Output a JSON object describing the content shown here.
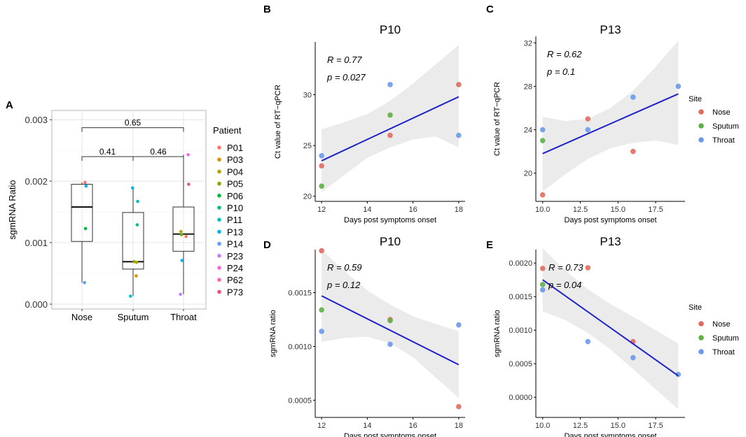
{
  "figure": {
    "site_legend_title": "Site",
    "patient_legend_title": "Patient",
    "colors": {
      "Nose": "#E06C5F",
      "Sputum": "#5DB146",
      "Throat": "#6A99EA",
      "fit_line": "#1E22C8",
      "band": "#EBEBEB",
      "grid": "#E4E4E4"
    }
  },
  "chart_data": [
    {
      "panel": "A",
      "type": "box",
      "title": "",
      "ylabel": "sgmRNA Ratio",
      "xlabel": "",
      "categories": [
        "Nose",
        "Sputum",
        "Throat"
      ],
      "ylim": [
        -8e-05,
        0.00315
      ],
      "yticks": [
        0,
        0.001,
        0.002,
        0.003
      ],
      "ytick_labels": [
        "0.000",
        "0.001",
        "0.002",
        "0.003"
      ],
      "boxes": [
        {
          "category": "Nose",
          "min": 0.00035,
          "q1": 0.00102,
          "median": 0.00158,
          "q3": 0.00195,
          "max": 0.00198
        },
        {
          "category": "Sputum",
          "min": 0.00013,
          "q1": 0.00057,
          "median": 0.00069,
          "q3": 0.00149,
          "max": 0.00189
        },
        {
          "category": "Throat",
          "min": 0.00016,
          "q1": 0.00086,
          "median": 0.00114,
          "q3": 0.00158,
          "max": 0.00243
        }
      ],
      "comparisons": [
        {
          "from": "Nose",
          "to": "Throat",
          "label": "0.65",
          "y": 0.00287
        },
        {
          "from": "Nose",
          "to": "Sputum",
          "label": "0.41",
          "y": 0.0024
        },
        {
          "from": "Sputum",
          "to": "Throat",
          "label": "0.46",
          "y": 0.0024
        }
      ],
      "legend": [
        {
          "name": "P01",
          "color": "#F8766D"
        },
        {
          "name": "P03",
          "color": "#DE8C00"
        },
        {
          "name": "P04",
          "color": "#B79F00"
        },
        {
          "name": "P05",
          "color": "#7CAE00"
        },
        {
          "name": "P06",
          "color": "#00BA38"
        },
        {
          "name": "P10",
          "color": "#00C08B"
        },
        {
          "name": "P11",
          "color": "#00BFC4"
        },
        {
          "name": "P13",
          "color": "#00B4F0"
        },
        {
          "name": "P14",
          "color": "#619CFF"
        },
        {
          "name": "P23",
          "color": "#C77CFF"
        },
        {
          "name": "P24",
          "color": "#F564E3"
        },
        {
          "name": "P62",
          "color": "#FF64B0"
        },
        {
          "name": "P73",
          "color": "#E8508A"
        }
      ],
      "points": [
        {
          "category": "Nose",
          "dx": 0.06,
          "y": 0.00198,
          "color": "#F8766D"
        },
        {
          "category": "Nose",
          "dx": 0.08,
          "y": 0.00192,
          "color": "#00B4F0"
        },
        {
          "category": "Nose",
          "dx": 0.07,
          "y": 0.00123,
          "color": "#00BA38"
        },
        {
          "category": "Nose",
          "dx": 0.05,
          "y": 0.00035,
          "color": "#619CFF"
        },
        {
          "category": "Sputum",
          "dx": -0.01,
          "y": 0.00189,
          "color": "#00B4F0"
        },
        {
          "category": "Sputum",
          "dx": 0.09,
          "y": 0.00167,
          "color": "#00BFC4"
        },
        {
          "category": "Sputum",
          "dx": 0.08,
          "y": 0.00129,
          "color": "#00C08B"
        },
        {
          "category": "Sputum",
          "dx": 0.02,
          "y": 0.00069,
          "color": "#7CAE00"
        },
        {
          "category": "Sputum",
          "dx": 0.07,
          "y": 0.00068,
          "color": "#B79F00"
        },
        {
          "category": "Sputum",
          "dx": 0.06,
          "y": 0.00046,
          "color": "#DE8C00"
        },
        {
          "category": "Sputum",
          "dx": -0.05,
          "y": 0.00013,
          "color": "#00BFC4"
        },
        {
          "category": "Throat",
          "dx": 0.09,
          "y": 0.00243,
          "color": "#F564E3"
        },
        {
          "category": "Throat",
          "dx": 0.1,
          "y": 0.00195,
          "color": "#E8508A"
        },
        {
          "category": "Throat",
          "dx": -0.05,
          "y": 0.00118,
          "color": "#B79F00"
        },
        {
          "category": "Throat",
          "dx": -0.04,
          "y": 0.00113,
          "color": "#7CAE00"
        },
        {
          "category": "Throat",
          "dx": 0.05,
          "y": 0.0011,
          "color": "#F8766D"
        },
        {
          "category": "Throat",
          "dx": -0.03,
          "y": 0.00071,
          "color": "#00B4F0"
        },
        {
          "category": "Throat",
          "dx": -0.06,
          "y": 0.00016,
          "color": "#C77CFF"
        }
      ]
    },
    {
      "panel": "B",
      "type": "scatter",
      "title": "P10",
      "xlabel": "Days post symptoms onset",
      "ylabel": "Ct value of RT−qPCR",
      "xlim": [
        11.72,
        18.28
      ],
      "ylim": [
        19.5,
        35.2
      ],
      "xticks": [
        12,
        14,
        16,
        18
      ],
      "xtick_labels": [
        "12",
        "14",
        "16",
        "18"
      ],
      "yticks": [
        20,
        25,
        30
      ],
      "ytick_labels": [
        "20",
        "25",
        "30"
      ],
      "stat_r": "R = 0.77",
      "stat_p": "p = 0.027",
      "fit": {
        "x": [
          12,
          18
        ],
        "y": [
          23.5,
          29.8
        ]
      },
      "band": {
        "x": [
          12,
          13,
          14,
          15,
          16,
          17,
          18
        ],
        "upper": [
          26.6,
          27.3,
          28.1,
          29.4,
          31.1,
          33.0,
          34.9
        ],
        "lower": [
          20.4,
          22.1,
          23.8,
          24.8,
          25.6,
          25.9,
          24.8
        ]
      },
      "points": [
        {
          "x": 12,
          "y": 24.0,
          "site": "Throat"
        },
        {
          "x": 12,
          "y": 23.0,
          "site": "Nose"
        },
        {
          "x": 12,
          "y": 21.0,
          "site": "Sputum"
        },
        {
          "x": 15,
          "y": 31.0,
          "site": "Throat"
        },
        {
          "x": 15,
          "y": 28.0,
          "site": "Sputum"
        },
        {
          "x": 15,
          "y": 26.0,
          "site": "Nose"
        },
        {
          "x": 18,
          "y": 31.0,
          "site": "Nose"
        },
        {
          "x": 18,
          "y": 26.0,
          "site": "Throat"
        }
      ]
    },
    {
      "panel": "C",
      "type": "scatter",
      "title": "P13",
      "xlabel": "Days post symptoms onset",
      "ylabel": "Ct value of RT−qPCR",
      "xlim": [
        9.55,
        19.45
      ],
      "ylim": [
        17.4,
        32.6
      ],
      "xticks": [
        10,
        12.5,
        15,
        17.5
      ],
      "xtick_labels": [
        "10.0",
        "12.5",
        "15.0",
        "17.5"
      ],
      "yticks": [
        20,
        24,
        28,
        32
      ],
      "ytick_labels": [
        "20",
        "24",
        "28",
        "32"
      ],
      "stat_r": "R = 0.62",
      "stat_p": "p = 0.1",
      "fit": {
        "x": [
          10,
          19
        ],
        "y": [
          21.8,
          27.3
        ]
      },
      "band": {
        "x": [
          10,
          11.5,
          13,
          14.5,
          16,
          17.5,
          19
        ],
        "upper": [
          25.2,
          24.8,
          25.0,
          26.0,
          27.6,
          29.8,
          32.2
        ],
        "lower": [
          18.3,
          19.9,
          21.3,
          22.3,
          22.8,
          23.0,
          22.6
        ]
      },
      "points": [
        {
          "x": 10,
          "y": 24.0,
          "site": "Throat"
        },
        {
          "x": 10,
          "y": 23.0,
          "site": "Sputum"
        },
        {
          "x": 10,
          "y": 18.0,
          "site": "Nose"
        },
        {
          "x": 13,
          "y": 25.0,
          "site": "Nose"
        },
        {
          "x": 13,
          "y": 24.0,
          "site": "Throat"
        },
        {
          "x": 16,
          "y": 27.0,
          "site": "Throat"
        },
        {
          "x": 16,
          "y": 22.0,
          "site": "Nose"
        },
        {
          "x": 19,
          "y": 28.0,
          "site": "Throat"
        }
      ]
    },
    {
      "panel": "D",
      "type": "scatter",
      "title": "P10",
      "xlabel": "Days post symptoms onset",
      "ylabel": "sgmRNA ratio",
      "xlim": [
        11.72,
        18.28
      ],
      "ylim": [
        0.00034,
        0.0019
      ],
      "xticks": [
        12,
        14,
        16,
        18
      ],
      "xtick_labels": [
        "12",
        "14",
        "16",
        "18"
      ],
      "yticks": [
        0.0005,
        0.001,
        0.0015
      ],
      "ytick_labels": [
        "0.0005",
        "0.0010",
        "0.0015"
      ],
      "stat_r": "R =  0.59",
      "stat_p": "p = 0.12",
      "fit": {
        "x": [
          12,
          18
        ],
        "y": [
          0.00147,
          0.00083
        ]
      },
      "band": {
        "x": [
          12,
          13,
          14,
          15,
          16,
          17,
          18
        ],
        "upper": [
          0.0019,
          0.0017,
          0.00152,
          0.00139,
          0.00128,
          0.00121,
          0.00114
        ],
        "lower": [
          0.00104,
          0.00108,
          0.00109,
          0.00103,
          0.0009,
          0.00071,
          0.00052
        ]
      },
      "points": [
        {
          "x": 12,
          "y": 0.00189,
          "site": "Nose"
        },
        {
          "x": 12,
          "y": 0.00134,
          "site": "Sputum"
        },
        {
          "x": 12,
          "y": 0.00114,
          "site": "Throat"
        },
        {
          "x": 15,
          "y": 0.00125,
          "site": "Nose"
        },
        {
          "x": 15,
          "y": 0.00124,
          "site": "Sputum"
        },
        {
          "x": 15,
          "y": 0.00102,
          "site": "Throat"
        },
        {
          "x": 18,
          "y": 0.0012,
          "site": "Throat"
        },
        {
          "x": 18,
          "y": 0.00044,
          "site": "Nose"
        }
      ]
    },
    {
      "panel": "E",
      "type": "scatter",
      "title": "P13",
      "xlabel": "Days post symptoms onset",
      "ylabel": "sgmRNA ratio",
      "xlim": [
        9.55,
        19.45
      ],
      "ylim": [
        -0.0003,
        0.0022
      ],
      "xticks": [
        10,
        12.5,
        15,
        17.5
      ],
      "xtick_labels": [
        "10.0",
        "12.5",
        "15.0",
        "17.5"
      ],
      "yticks": [
        0,
        0.0005,
        0.001,
        0.0015,
        0.002
      ],
      "ytick_labels": [
        "0.0000",
        "0.0005",
        "0.0010",
        "0.0015",
        "0.0020"
      ],
      "stat_r": "R =  0.73",
      "stat_p": "p = 0.04",
      "fit": {
        "x": [
          10,
          19
        ],
        "y": [
          0.00175,
          0.00032
        ]
      },
      "band": {
        "x": [
          10,
          11.5,
          13,
          14.5,
          16,
          17.5,
          19
        ],
        "upper": [
          0.00222,
          0.00189,
          0.00161,
          0.00139,
          0.0012,
          0.001,
          0.0008
        ],
        "lower": [
          0.00128,
          0.00115,
          0.00096,
          0.00071,
          0.00042,
          0.00012,
          -0.00018
        ]
      },
      "points": [
        {
          "x": 10,
          "y": 0.00192,
          "site": "Nose"
        },
        {
          "x": 10,
          "y": 0.00168,
          "site": "Sputum"
        },
        {
          "x": 10,
          "y": 0.0016,
          "site": "Throat"
        },
        {
          "x": 13,
          "y": 0.00193,
          "site": "Nose"
        },
        {
          "x": 13,
          "y": 0.00083,
          "site": "Throat"
        },
        {
          "x": 16,
          "y": 0.00083,
          "site": "Nose"
        },
        {
          "x": 16,
          "y": 0.00059,
          "site": "Throat"
        },
        {
          "x": 19,
          "y": 0.00034,
          "site": "Throat"
        }
      ]
    }
  ]
}
